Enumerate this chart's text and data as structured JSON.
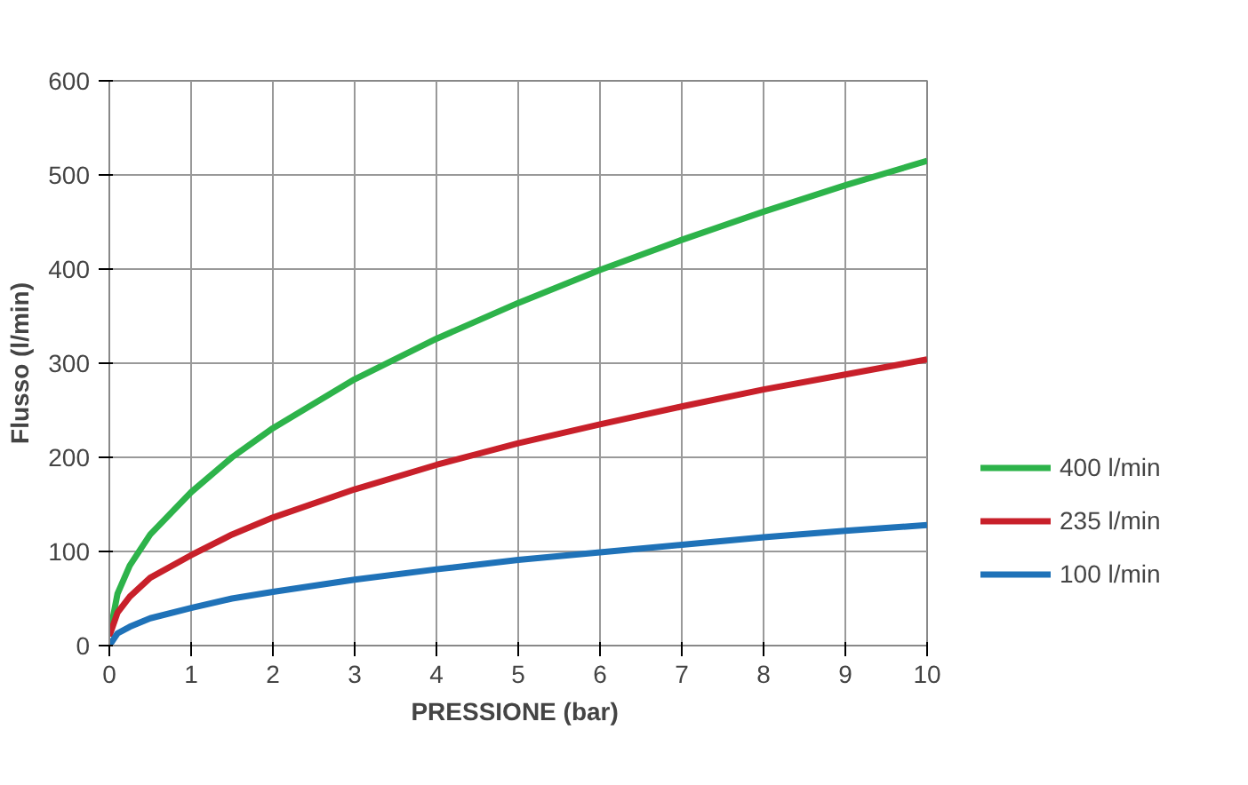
{
  "chart_data": {
    "type": "line",
    "xlabel": "PRESSIONE  (bar)",
    "ylabel": "Flusso (l/min)",
    "x": [
      0,
      0.1,
      0.25,
      0.5,
      1,
      1.5,
      2,
      3,
      4,
      5,
      6,
      7,
      8,
      9,
      10
    ],
    "series": [
      {
        "name": "400 l/min",
        "color": "#2db34a",
        "values": [
          10,
          55,
          85,
          118,
          163,
          200,
          231,
          283,
          326,
          364,
          399,
          431,
          461,
          489,
          515
        ]
      },
      {
        "name": "235 l/min",
        "color": "#c8202a",
        "values": [
          10,
          35,
          52,
          72,
          96,
          118,
          136,
          166,
          192,
          215,
          235,
          254,
          272,
          288,
          304
        ]
      },
      {
        "name": "100 l/min",
        "color": "#1f72b8",
        "values": [
          0,
          13,
          20,
          29,
          40,
          50,
          57,
          70,
          81,
          91,
          99,
          107,
          115,
          122,
          128
        ]
      }
    ],
    "xlim": [
      0,
      10
    ],
    "xticks": [
      0,
      1,
      2,
      3,
      4,
      5,
      6,
      7,
      8,
      9,
      10
    ],
    "ylim": [
      0,
      600
    ],
    "yticks": [
      0,
      100,
      200,
      300,
      400,
      500,
      600
    ],
    "grid": true,
    "legend": "right",
    "marker": "none",
    "line_style": "solid"
  }
}
